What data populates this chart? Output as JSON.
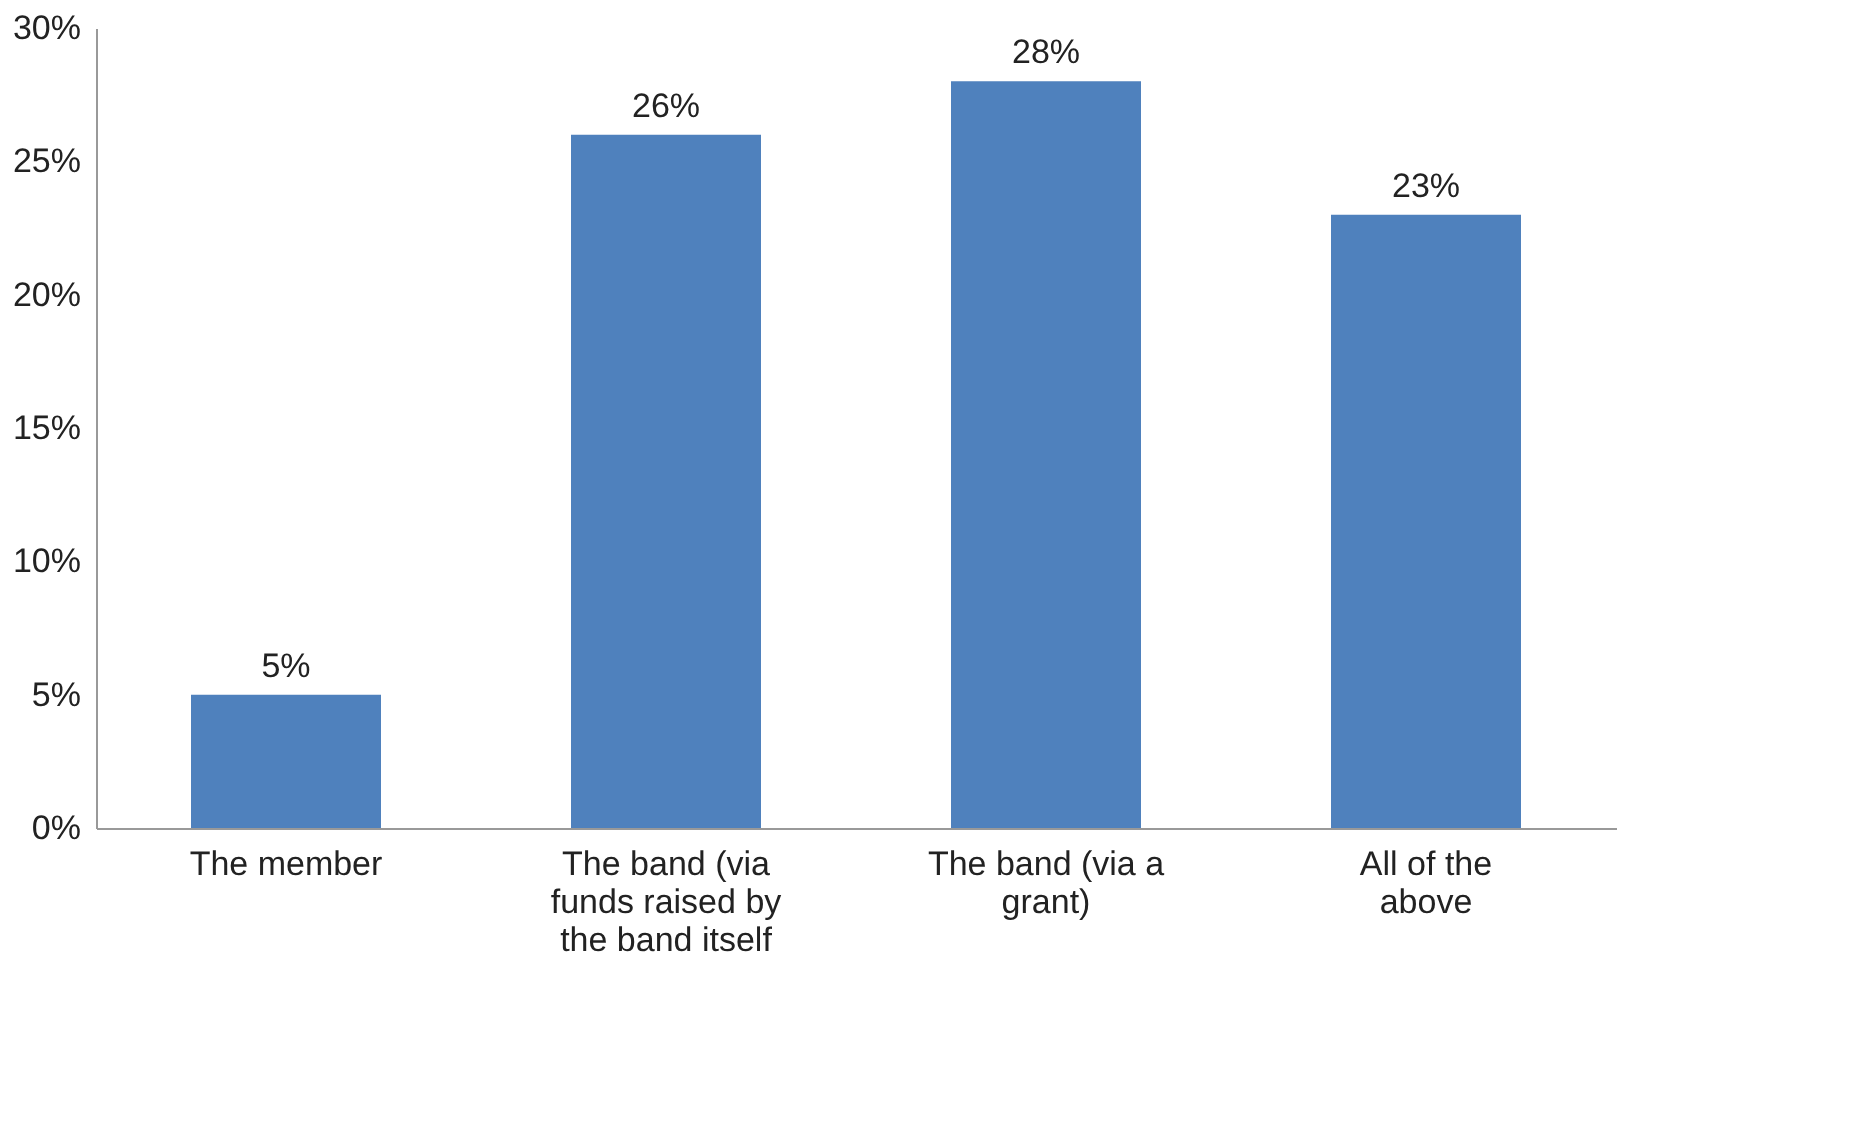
{
  "chart_data": {
    "type": "bar",
    "categories": [
      "The member",
      "The band (via funds raised by the band itself",
      "The band (via a grant)",
      "All of the above"
    ],
    "values": [
      5,
      26,
      28,
      23
    ],
    "value_labels": [
      "5%",
      "26%",
      "28%",
      "23%"
    ],
    "color": "#4f81bd",
    "ylim": [
      0,
      30
    ],
    "yticks": [
      {
        "value": 0,
        "label": "0%"
      },
      {
        "value": 5,
        "label": "5%"
      },
      {
        "value": 10,
        "label": "10%"
      },
      {
        "value": 15,
        "label": "15%"
      },
      {
        "value": 20,
        "label": "20%"
      },
      {
        "value": 25,
        "label": "25%"
      },
      {
        "value": 30,
        "label": "30%"
      }
    ],
    "grid": false
  }
}
